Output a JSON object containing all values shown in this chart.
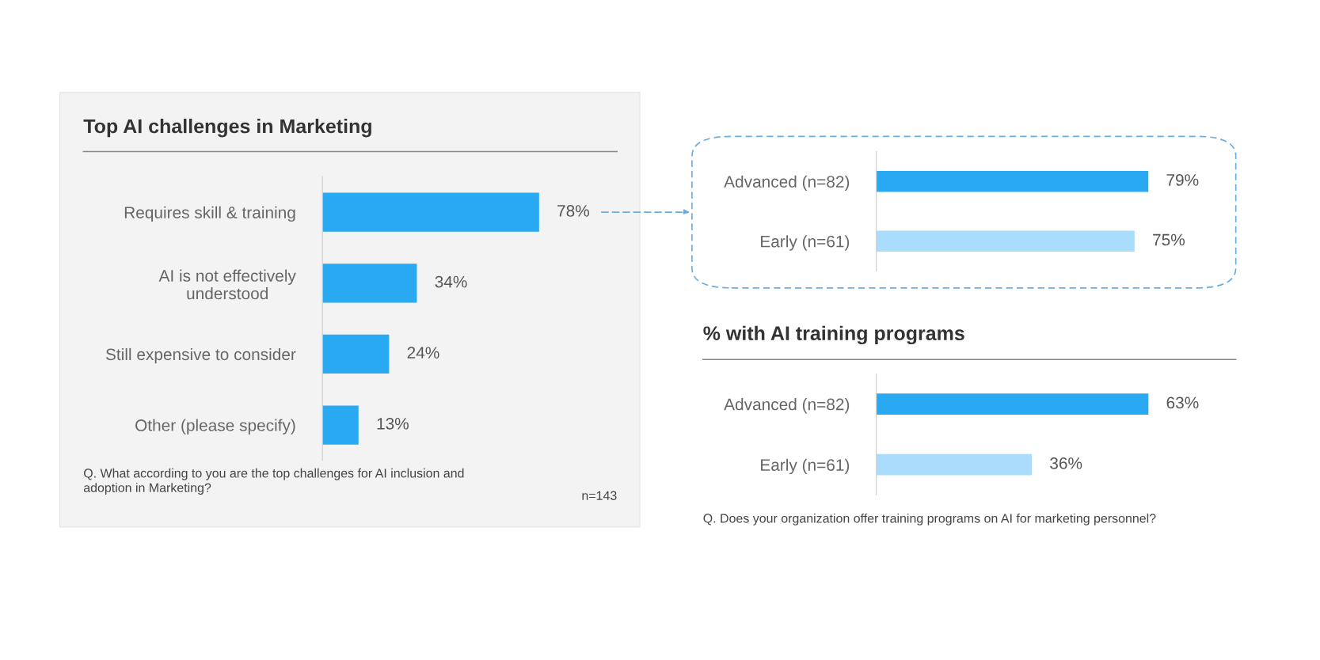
{
  "chart_data": [
    {
      "type": "bar",
      "orientation": "horizontal",
      "title": "Top AI challenges in Marketing",
      "categories": [
        "Requires skill & training",
        "AI is not effectively\nunderstood",
        "Still expensive to consider",
        "Other (please specify)"
      ],
      "values": [
        78,
        34,
        24,
        13
      ],
      "value_labels": [
        "78%",
        "34%",
        "24%",
        "13%"
      ],
      "color": "#29a9f1",
      "grid": false,
      "legend": false,
      "annotations": [
        "Q. What according to you are the top challenges for AI inclusion and\nadoption in Marketing?",
        "n=143"
      ]
    },
    {
      "type": "bar",
      "orientation": "horizontal",
      "categories": [
        "Advanced (n=82)",
        "Early (n=61)"
      ],
      "values": [
        79,
        75
      ],
      "value_labels": [
        "79%",
        "75%"
      ],
      "colors": [
        "#29a9f1",
        "#aadcfc"
      ],
      "grid": false,
      "legend": false
    },
    {
      "type": "bar",
      "orientation": "horizontal",
      "title": "% with AI training programs",
      "categories": [
        "Advanced (n=82)",
        "Early (n=61)"
      ],
      "values": [
        63,
        36
      ],
      "value_labels": [
        "63%",
        "36%"
      ],
      "colors": [
        "#29a9f1",
        "#aadcfc"
      ],
      "grid": false,
      "legend": false,
      "annotations": [
        "Q. Does your organization offer training programs on AI for marketing personnel?"
      ]
    }
  ]
}
